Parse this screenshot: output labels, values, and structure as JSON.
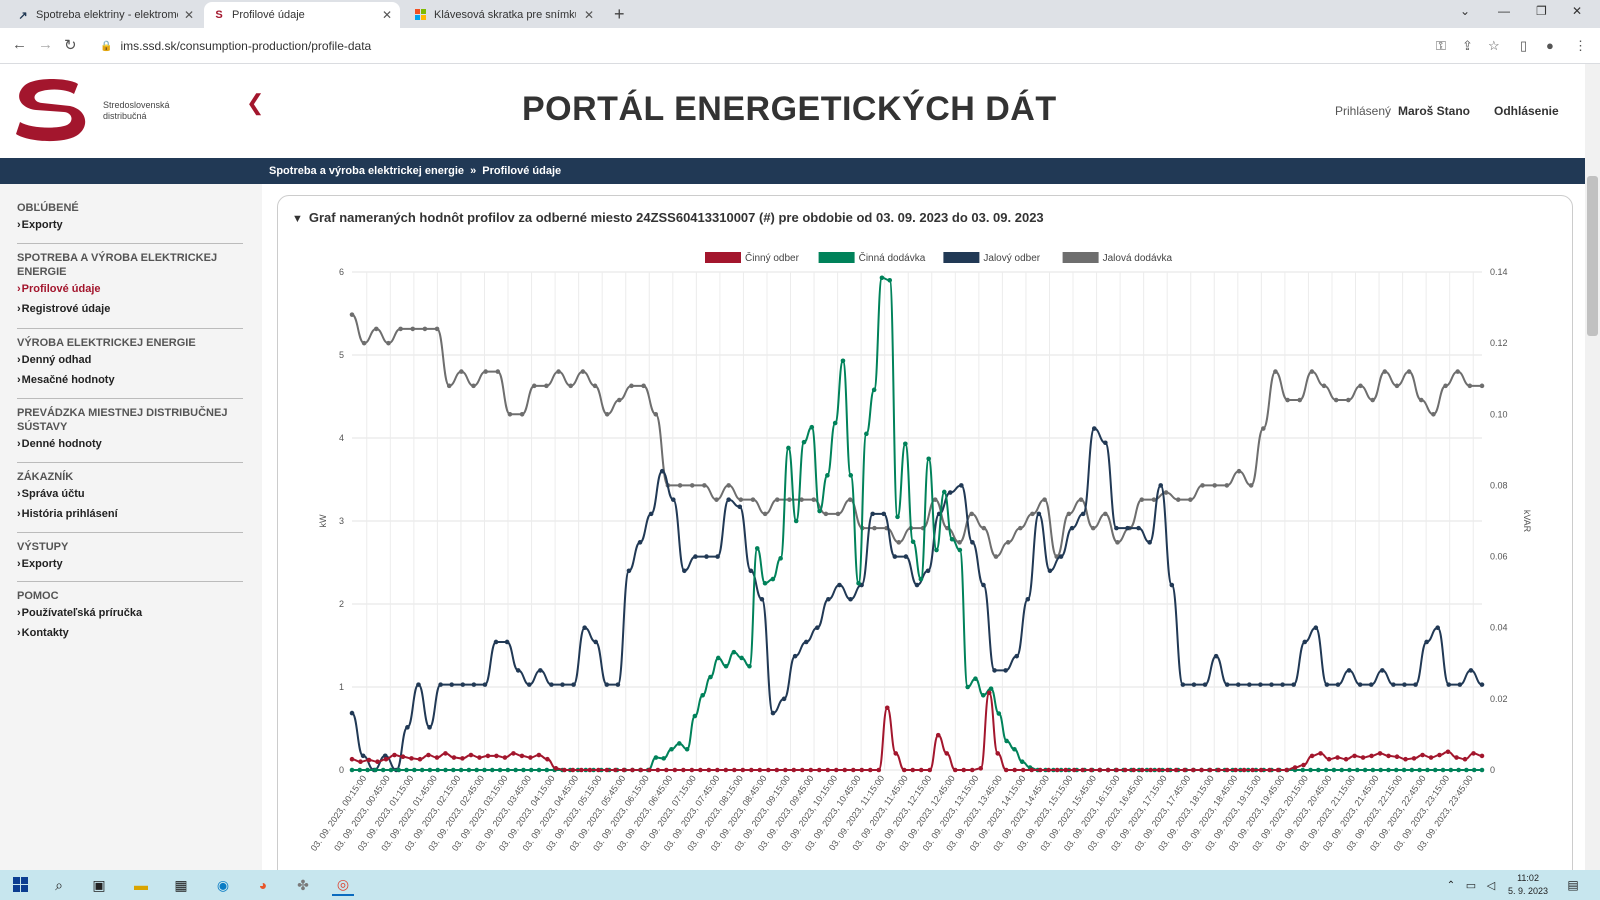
{
  "browser": {
    "tabs": [
      {
        "title": "Spotreba elektriny - elektromer v",
        "icon": "ssd-chart-favicon"
      },
      {
        "title": "Profilové údaje",
        "icon": "ssd-favicon",
        "active": true
      },
      {
        "title": "Klávesová skratka pre snímku ob",
        "icon": "microsoft-favicon"
      }
    ],
    "url": "ims.ssd.sk/consumption-production/profile-data"
  },
  "header": {
    "logo_line1": "Stredoslovenská",
    "logo_line2": "distribučná",
    "title": "PORTÁL ENERGETICKÝCH DÁT",
    "logged_label": "Prihlásený",
    "user_name": "Maroš Stano",
    "logout": "Odhlásenie"
  },
  "breadcrumb": {
    "item1": "Spotreba a výroba elektrickej energie",
    "separator": "»",
    "item2": "Profilové údaje"
  },
  "sidebar": {
    "sections": [
      {
        "heading": "OBĽÚBENÉ",
        "items": [
          "Exporty"
        ]
      },
      {
        "heading": "SPOTREBA A VÝROBA ELEKTRICKEJ ENERGIE",
        "items": [
          "Profilové údaje",
          "Registrové údaje"
        ]
      },
      {
        "heading": "VÝROBA ELEKTRICKEJ ENERGIE",
        "items": [
          "Denný odhad",
          "Mesačné hodnoty"
        ]
      },
      {
        "heading": "PREVÁDZKA MIESTNEJ DISTRIBUČNEJ SÚSTAVY",
        "items": [
          "Denné hodnoty"
        ]
      },
      {
        "heading": "ZÁKAZNÍK",
        "items": [
          "Správa účtu",
          "História prihlásení"
        ]
      },
      {
        "heading": "VÝSTUPY",
        "items": [
          "Exporty"
        ]
      },
      {
        "heading": "POMOC",
        "items": [
          "Používateľská príručka",
          "Kontakty"
        ]
      }
    ],
    "active_item": "Profilové údaje"
  },
  "panel": {
    "title": "Graf nameraných hodnôt profilov za odberné miesto 24ZSS60413310007 (#) pre obdobie od 03. 09. 2023 do 03. 09. 2023"
  },
  "chart_data": {
    "type": "line",
    "ylabel": "kW",
    "y2label": "kVAR",
    "ylim": [
      0,
      6
    ],
    "y2lim": [
      0,
      0.14
    ],
    "yticks": [
      "0",
      "1",
      "2",
      "3",
      "4",
      "5",
      "6"
    ],
    "y2ticks": [
      "0",
      "0.02",
      "0.04",
      "0.06",
      "0.08",
      "0.10",
      "0.12",
      "0.14"
    ],
    "legend_position": "top-center",
    "grid": true,
    "x_tick_labels": [
      "03. 09. 2023, 00:15:00",
      "03. 09. 2023, 00:45:00",
      "03. 09. 2023, 01:15:00",
      "03. 09. 2023, 01:45:00",
      "03. 09. 2023, 02:15:00",
      "03. 09. 2023, 02:45:00",
      "03. 09. 2023, 03:15:00",
      "03. 09. 2023, 03:45:00",
      "03. 09. 2023, 04:15:00",
      "03. 09. 2023, 04:45:00",
      "03. 09. 2023, 05:15:00",
      "03. 09. 2023, 05:45:00",
      "03. 09. 2023, 06:15:00",
      "03. 09. 2023, 06:45:00",
      "03. 09. 2023, 07:15:00",
      "03. 09. 2023, 07:45:00",
      "03. 09. 2023, 08:15:00",
      "03. 09. 2023, 08:45:00",
      "03. 09. 2023, 09:15:00",
      "03. 09. 2023, 09:45:00",
      "03. 09. 2023, 10:15:00",
      "03. 09. 2023, 10:45:00",
      "03. 09. 2023, 11:15:00",
      "03. 09. 2023, 11:45:00",
      "03. 09. 2023, 12:15:00",
      "03. 09. 2023, 12:45:00",
      "03. 09. 2023, 13:15:00",
      "03. 09. 2023, 13:45:00",
      "03. 09. 2023, 14:15:00",
      "03. 09. 2023, 14:45:00",
      "03. 09. 2023, 15:15:00",
      "03. 09. 2023, 15:45:00",
      "03. 09. 2023, 16:15:00",
      "03. 09. 2023, 16:45:00",
      "03. 09. 2023, 17:15:00",
      "03. 09. 2023, 17:45:00",
      "03. 09. 2023, 18:15:00",
      "03. 09. 2023, 18:45:00",
      "03. 09. 2023, 19:15:00",
      "03. 09. 2023, 19:45:00",
      "03. 09. 2023, 20:15:00",
      "03. 09. 2023, 20:45:00",
      "03. 09. 2023, 21:15:00",
      "03. 09. 2023, 21:45:00",
      "03. 09. 2023, 22:15:00",
      "03. 09. 2023, 22:45:00",
      "03. 09. 2023, 23:15:00",
      "03. 09. 2023, 23:45:00"
    ],
    "series": [
      {
        "name": "Činný odber",
        "color": "#a3162d",
        "axis": "kW",
        "values": [
          0.13,
          0.1,
          0.12,
          0.1,
          0.13,
          0.18,
          0.16,
          0.14,
          0.13,
          0.18,
          0.15,
          0.2,
          0.15,
          0.14,
          0.18,
          0.15,
          0.17,
          0.17,
          0.15,
          0.2,
          0.17,
          0.15,
          0.18,
          0.13,
          0.02,
          0,
          0,
          0,
          0,
          0,
          0,
          0,
          0,
          0,
          0,
          0,
          0,
          0,
          0,
          0,
          0,
          0,
          0,
          0,
          0,
          0,
          0,
          0,
          0,
          0,
          0,
          0,
          0,
          0,
          0,
          0,
          0,
          0,
          0,
          0,
          0,
          0,
          0,
          0.75,
          0.2,
          0,
          0,
          0,
          0,
          0.42,
          0.2,
          0,
          0,
          0,
          0.02,
          0.93,
          0.2,
          0,
          0,
          0,
          0,
          0,
          0,
          0,
          0,
          0,
          0,
          0,
          0,
          0,
          0,
          0,
          0,
          0,
          0,
          0,
          0,
          0,
          0,
          0,
          0,
          0,
          0,
          0,
          0,
          0,
          0,
          0,
          0,
          0,
          0,
          0.03,
          0.06,
          0.17,
          0.2,
          0.13,
          0.15,
          0.13,
          0.17,
          0.15,
          0.17,
          0.2,
          0.17,
          0.16,
          0.13,
          0.14,
          0.18,
          0.15,
          0.18,
          0.22,
          0.15,
          0.13,
          0.2,
          0.17
        ]
      },
      {
        "name": "Činná dodávka",
        "color": "#00825a",
        "axis": "kW",
        "values": [
          0,
          0,
          0,
          0,
          0,
          0,
          0,
          0,
          0,
          0,
          0,
          0,
          0,
          0,
          0,
          0,
          0,
          0,
          0,
          0,
          0,
          0,
          0,
          0,
          0,
          0,
          0,
          0,
          0,
          0,
          0,
          0,
          0,
          0,
          0,
          0,
          0,
          0,
          0,
          0.15,
          0.14,
          0.25,
          0.32,
          0.25,
          0.65,
          0.9,
          1.12,
          1.35,
          1.25,
          1.42,
          1.35,
          1.25,
          2.67,
          2.25,
          2.3,
          2.55,
          3.88,
          3.0,
          3.95,
          4.13,
          3.12,
          3.55,
          4.18,
          4.93,
          3.55,
          2.25,
          4.05,
          4.58,
          5.93,
          5.9,
          3.05,
          3.93,
          2.75,
          2.3,
          3.75,
          2.65,
          3.35,
          2.78,
          2.65,
          1.0,
          1.1,
          0.9,
          0.98,
          0.68,
          0.35,
          0.25,
          0.1,
          0.03,
          0,
          0,
          0,
          0,
          0,
          0,
          0,
          0,
          0,
          0,
          0,
          0,
          0,
          0,
          0,
          0,
          0,
          0,
          0,
          0,
          0,
          0,
          0,
          0,
          0,
          0,
          0,
          0,
          0,
          0,
          0,
          0,
          0,
          0,
          0,
          0,
          0,
          0,
          0,
          0,
          0,
          0,
          0,
          0,
          0,
          0,
          0,
          0,
          0,
          0,
          0,
          0,
          0,
          0,
          0,
          0,
          0,
          0
        ]
      },
      {
        "name": "Jalový odber",
        "color": "#213955",
        "axis": "kVAR",
        "values": [
          0.016,
          0.004,
          0,
          0.004,
          0,
          0.012,
          0.024,
          0.012,
          0.024,
          0.024,
          0.024,
          0.024,
          0.024,
          0.036,
          0.036,
          0.028,
          0.024,
          0.028,
          0.024,
          0.024,
          0.024,
          0.04,
          0.036,
          0.024,
          0.024,
          0.056,
          0.064,
          0.072,
          0.084,
          0.076,
          0.056,
          0.06,
          0.06,
          0.06,
          0.076,
          0.074,
          0.056,
          0.048,
          0.016,
          0.02,
          0.032,
          0.036,
          0.04,
          0.048,
          0.052,
          0.048,
          0.052,
          0.072,
          0.072,
          0.06,
          0.06,
          0.052,
          0.056,
          0.072,
          0.078,
          0.08,
          0.064,
          0.052,
          0.028,
          0.028,
          0.032,
          0.048,
          0.072,
          0.056,
          0.06,
          0.068,
          0.072,
          0.096,
          0.092,
          0.068,
          0.068,
          0.068,
          0.064,
          0.08,
          0.052,
          0.024,
          0.024,
          0.024,
          0.032,
          0.024,
          0.024,
          0.024,
          0.024,
          0.024,
          0.024,
          0.024,
          0.036,
          0.04,
          0.024,
          0.024,
          0.028,
          0.024,
          0.024,
          0.028,
          0.024,
          0.024,
          0.024,
          0.036,
          0.04,
          0.024,
          0.024,
          0.028,
          0.024
        ]
      },
      {
        "name": "Jalová dodávka",
        "color": "#6e6e6e",
        "axis": "kVAR",
        "values": [
          0.128,
          0.12,
          0.124,
          0.12,
          0.124,
          0.124,
          0.124,
          0.124,
          0.108,
          0.112,
          0.108,
          0.112,
          0.112,
          0.1,
          0.1,
          0.108,
          0.108,
          0.112,
          0.108,
          0.112,
          0.108,
          0.1,
          0.104,
          0.108,
          0.108,
          0.1,
          0.08,
          0.08,
          0.08,
          0.08,
          0.076,
          0.08,
          0.076,
          0.076,
          0.072,
          0.076,
          0.076,
          0.076,
          0.076,
          0.072,
          0.072,
          0.076,
          0.068,
          0.068,
          0.068,
          0.064,
          0.068,
          0.068,
          0.076,
          0.068,
          0.064,
          0.072,
          0.068,
          0.06,
          0.064,
          0.068,
          0.072,
          0.076,
          0.06,
          0.072,
          0.076,
          0.068,
          0.072,
          0.064,
          0.068,
          0.076,
          0.076,
          0.078,
          0.076,
          0.076,
          0.08,
          0.08,
          0.08,
          0.084,
          0.08,
          0.096,
          0.112,
          0.104,
          0.104,
          0.112,
          0.108,
          0.104,
          0.104,
          0.108,
          0.104,
          0.112,
          0.108,
          0.112,
          0.104,
          0.1,
          0.108,
          0.112,
          0.108,
          0.108
        ]
      }
    ]
  },
  "taskbar": {
    "time": "11:02",
    "date": "5. 9. 2023"
  }
}
